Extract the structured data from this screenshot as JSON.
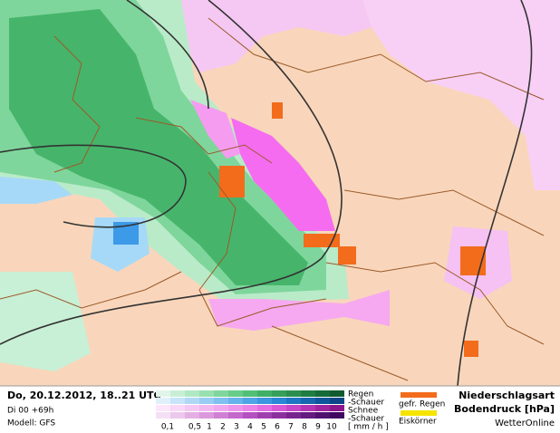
{
  "header": {
    "date": "Do, 20.12.2012, 18..21 UTC",
    "run": "Di 00 +69h",
    "model": "Modell: GFS"
  },
  "legend": {
    "rain": "Regen",
    "rain_showers": "-Schauer",
    "snow": "Schnee",
    "snow_showers": "-Schauer",
    "unit": "[ mm / h ]",
    "scale": [
      "0,1",
      "0,5",
      "1",
      "2",
      "3",
      "4",
      "5",
      "6",
      "7",
      "8",
      "9",
      "10"
    ],
    "freezing_rain": "gefr. Regen",
    "ice_pellets": "Eiskörner"
  },
  "title": {
    "type": "Niederschlagsart",
    "pressure": "Bodendruck [hPa]",
    "source": "WetterOnline"
  }
}
